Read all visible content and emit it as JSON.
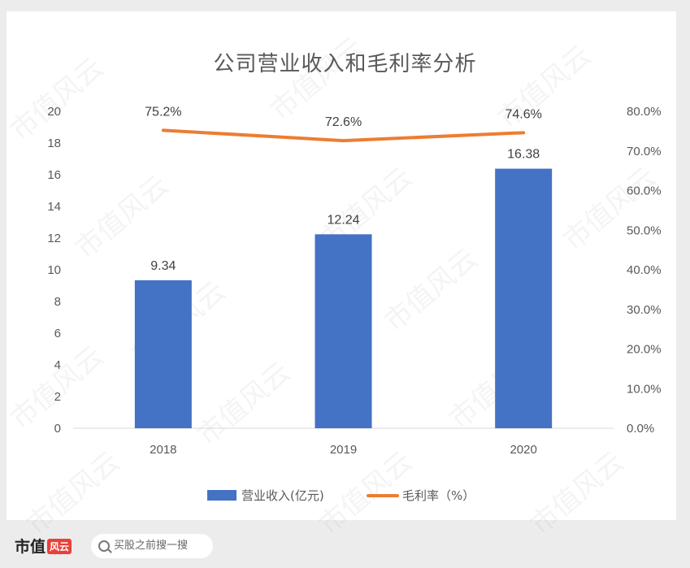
{
  "footer": {
    "brand": "市值",
    "brand_tag": "风云",
    "search_text": "买股之前搜一搜"
  },
  "watermark_text": "市值风云",
  "colors": {
    "bar": "#4472c4",
    "line": "#ed7d31"
  },
  "chart_data": {
    "type": "bar",
    "title": "公司营业收入和毛利率分析",
    "categories": [
      "2018",
      "2019",
      "2020"
    ],
    "series": [
      {
        "name": "营业收入(亿元)",
        "type": "bar",
        "axis": "left",
        "values": [
          9.34,
          12.24,
          16.38
        ],
        "labels": [
          "9.34",
          "12.24",
          "16.38"
        ]
      },
      {
        "name": "毛利率（%）",
        "type": "line",
        "axis": "right",
        "values": [
          75.2,
          72.6,
          74.6
        ],
        "labels": [
          "75.2%",
          "72.6%",
          "74.6%"
        ]
      }
    ],
    "y_left": {
      "ylim": [
        0,
        20
      ],
      "ticks": [
        "0",
        "2",
        "4",
        "6",
        "8",
        "10",
        "12",
        "14",
        "16",
        "18",
        "20"
      ]
    },
    "y_right": {
      "ylim": [
        0,
        80
      ],
      "ticks": [
        "0.0%",
        "10.0%",
        "20.0%",
        "30.0%",
        "40.0%",
        "50.0%",
        "60.0%",
        "70.0%",
        "80.0%"
      ]
    },
    "legend": "bottom",
    "grid": false
  }
}
